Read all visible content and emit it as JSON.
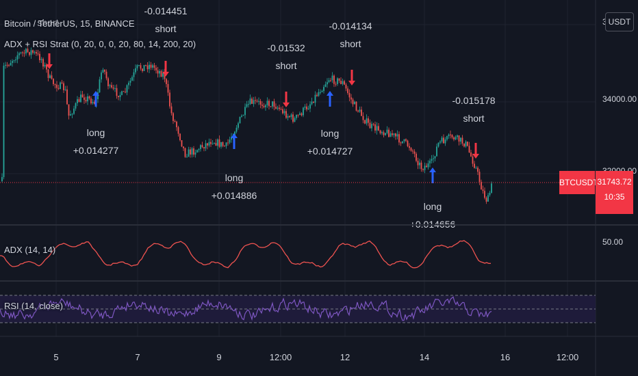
{
  "chart": {
    "symbol_title": "Bitcoin / TetherUS, 15, BINANCE",
    "strategy_label": "ADX + RSI Strat (0, 20, 0, 0, 20, 80, 14, 200, 20)",
    "currency": "USDT",
    "symbol_badge": "BTCUSDT",
    "last_price": "31743.72",
    "countdown": "10:35",
    "price_axis": [
      "3",
      "34000.00",
      "32000.00"
    ],
    "adx_label": "ADX (14, 14)",
    "adx_axis": "50.00",
    "rsi_label": "RSI (14, close)",
    "time_axis": [
      "5",
      "7",
      "9",
      "12:00",
      "12",
      "14",
      "16",
      "12:00"
    ],
    "colors": {
      "background": "#131722",
      "up_candle": "#26a69a",
      "down_candle": "#ef5350",
      "long_arrow": "#2962ff",
      "short_arrow": "#f23645",
      "adx_line": "#ef5350",
      "rsi_line": "#7e57c2",
      "rsi_band": "#1e1b3a"
    }
  },
  "trades": [
    {
      "type": "short",
      "side_label": "short",
      "pnl": "",
      "arrow": "down"
    },
    {
      "type": "long",
      "side_label": "long",
      "pnl": "+0.014277",
      "arrow": "up"
    },
    {
      "type": "short",
      "side_label": "short",
      "pnl": "-0.014451",
      "arrow": "down"
    },
    {
      "type": "long",
      "side_label": "long",
      "pnl": "+0.014886",
      "arrow": "up"
    },
    {
      "type": "short",
      "side_label": "short",
      "pnl": "-0.01532",
      "arrow": "down"
    },
    {
      "type": "long",
      "side_label": "long",
      "pnl": "+0.014727",
      "arrow": "up"
    },
    {
      "type": "short",
      "side_label": "short",
      "pnl": "-0.014134",
      "arrow": "down"
    },
    {
      "type": "long",
      "side_label": "long",
      "pnl": "+0.014656",
      "arrow": "up"
    },
    {
      "type": "short",
      "side_label": "short",
      "pnl": "-0.015178",
      "arrow": "down"
    }
  ],
  "chart_data": {
    "type": "line",
    "title": "Bitcoin / TetherUS, 15, BINANCE",
    "xlabel": "",
    "ylabel": "",
    "x": [
      "5",
      "7",
      "9",
      "12:00",
      "12",
      "14",
      "16"
    ],
    "series": [
      {
        "name": "BTCUSDT",
        "values": [
          35000,
          34200,
          33000,
          34200,
          34600,
          33200,
          31744
        ]
      },
      {
        "name": "ADX (14, 14)",
        "values": [
          30,
          42,
          55,
          33,
          40,
          48,
          55
        ]
      },
      {
        "name": "RSI (14, close)",
        "values": [
          55,
          48,
          50,
          52,
          45,
          47,
          42
        ]
      }
    ],
    "ylim": [
      31000,
      35500
    ],
    "grid": true,
    "legend": "top-left"
  }
}
